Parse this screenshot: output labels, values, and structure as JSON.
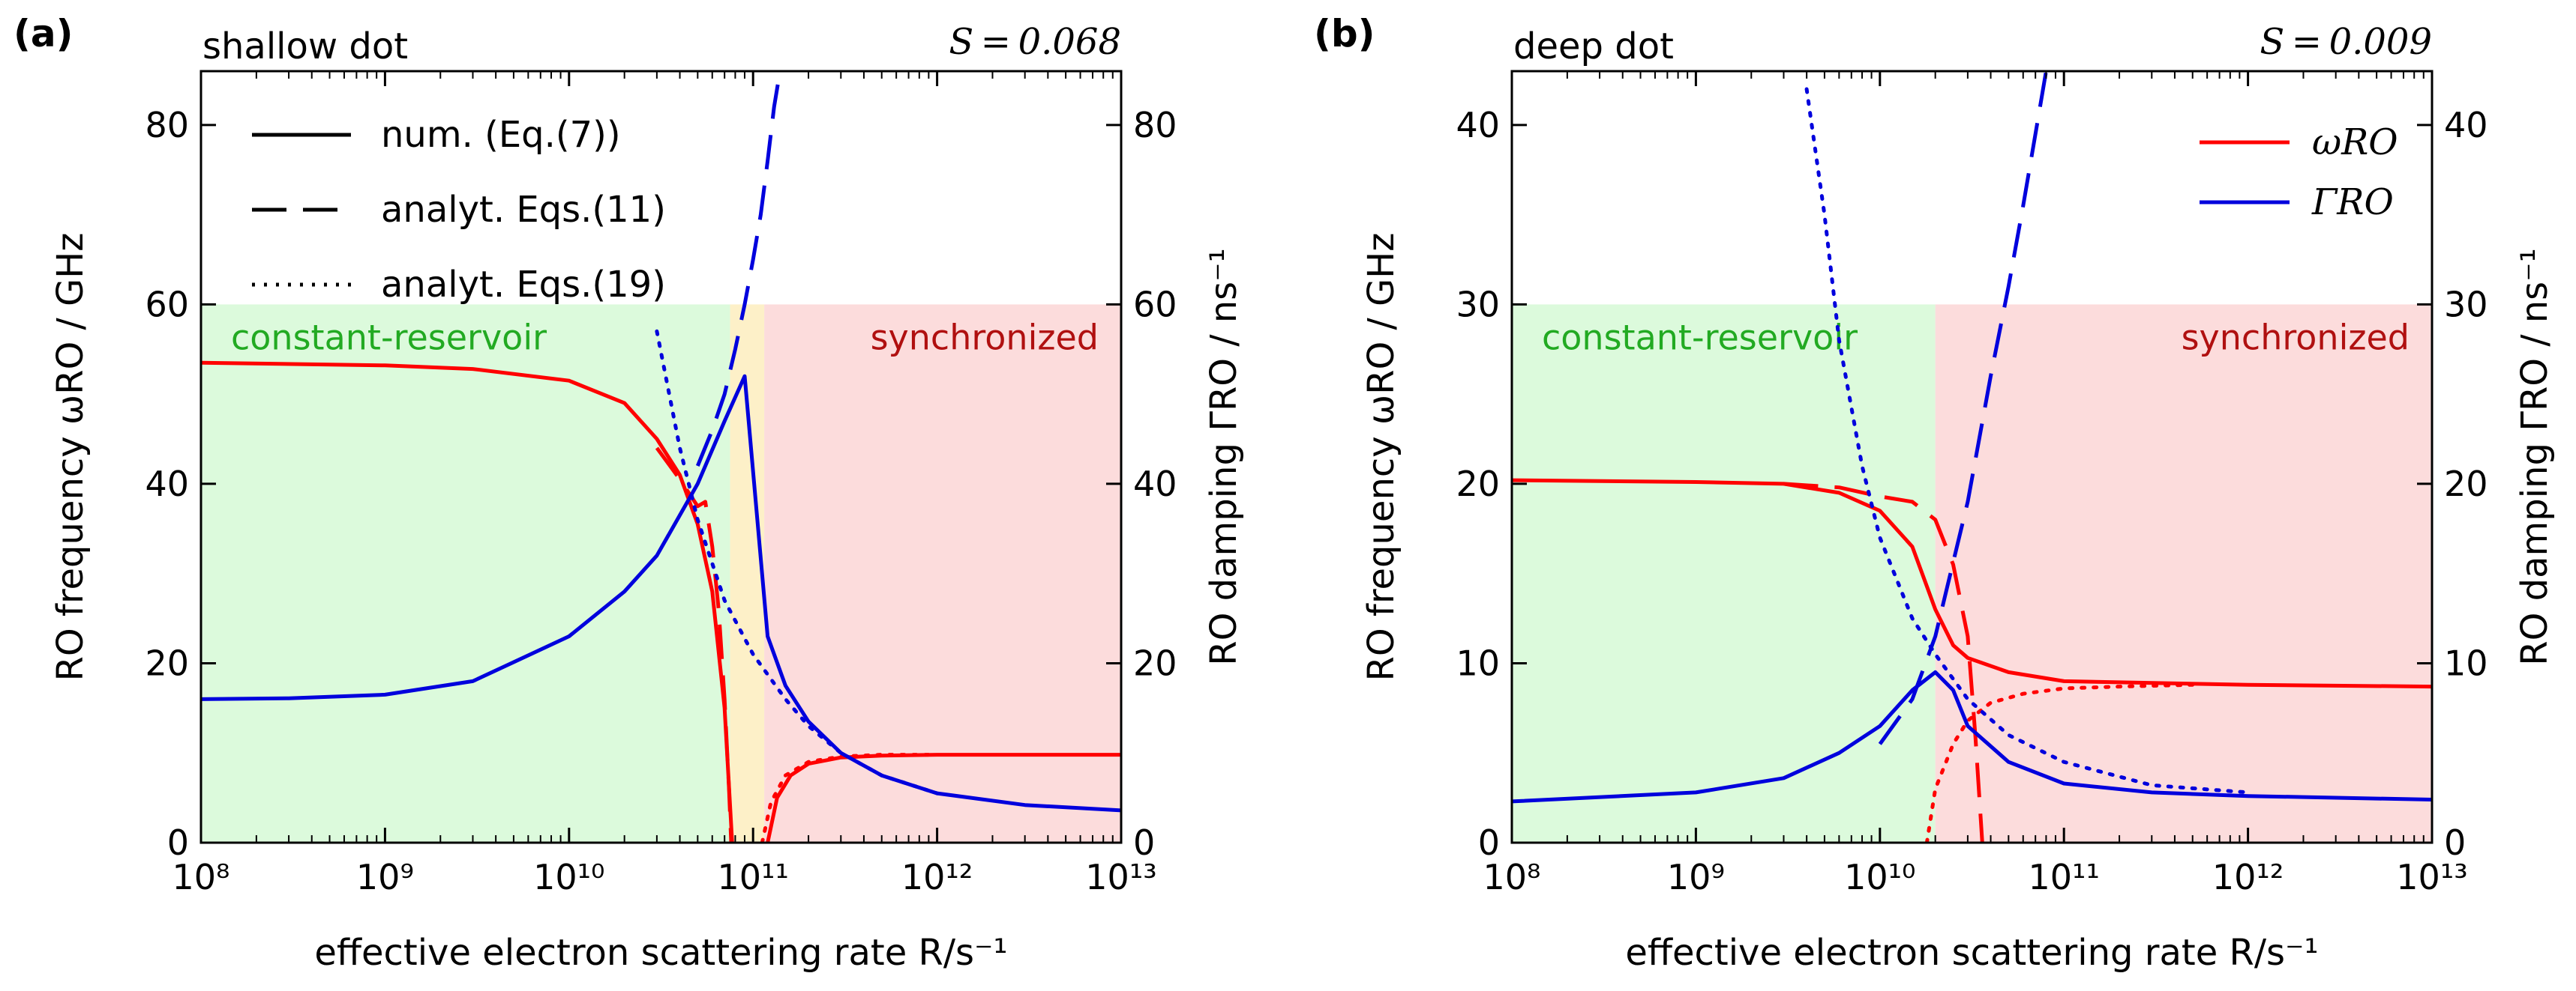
{
  "chart_data": [
    {
      "type": "line",
      "panel_label": "(a)",
      "title": "shallow dot",
      "parameter_label": "S = 0.068",
      "xlabel": "effective electron scattering rate  R/s⁻¹",
      "ylabel_left": "RO frequency  ωRO  /  GHz",
      "ylabel_right": "RO damping  ΓRO  /  ns⁻¹",
      "x_scale": "log",
      "xlim": [
        100000000.0,
        10000000000000.0
      ],
      "ylim_left": [
        0,
        86
      ],
      "ylim_right": [
        0,
        86
      ],
      "x_ticks": [
        100000000.0,
        1000000000.0,
        10000000000.0,
        100000000000.0,
        1000000000000.0,
        10000000000000.0
      ],
      "x_tick_labels": [
        "10⁸",
        "10⁹",
        "10¹⁰",
        "10¹¹",
        "10¹²",
        "10¹³"
      ],
      "y_ticks_left": [
        0,
        20,
        40,
        60,
        80
      ],
      "y_ticks_right": [
        0,
        20,
        40,
        60,
        80
      ],
      "regions": [
        {
          "label": "constant-reservoir",
          "x_range": [
            100000000.0,
            75000000000.0
          ],
          "y_range": [
            0,
            60
          ],
          "color": "#dcfadc",
          "text_color": "#22aa22"
        },
        {
          "label": "",
          "x_range": [
            75000000000.0,
            115000000000.0
          ],
          "y_range": [
            0,
            60
          ],
          "color": "#fdf0c8",
          "text_color": "#000000"
        },
        {
          "label": "synchronized",
          "x_range": [
            115000000000.0,
            10000000000000.0
          ],
          "y_range": [
            0,
            60
          ],
          "color": "#fcdcdc",
          "text_color": "#b01010"
        }
      ],
      "legend": {
        "position": "top-left",
        "entries": [
          {
            "label": "num. (Eq.(7))",
            "style": "solid"
          },
          {
            "label": "analyt. Eqs.(11)",
            "style": "dashed"
          },
          {
            "label": "analyt. Eqs.(19)",
            "style": "dotted"
          }
        ]
      },
      "series": [
        {
          "name": "ωRO num.",
          "color": "#ff0000",
          "style": "solid",
          "axis": "left",
          "x": [
            100000000.0,
            1000000000.0,
            3000000000.0,
            10000000000.0,
            20000000000.0,
            30000000000.0,
            40000000000.0,
            50000000000.0,
            60000000000.0,
            70000000000.0,
            77000000000.0
          ],
          "y": [
            53.5,
            53.2,
            52.8,
            51.5,
            49,
            45,
            41,
            35.5,
            28,
            15,
            0
          ]
        },
        {
          "name": "ωRO num. (synchronized branch)",
          "color": "#ff0000",
          "style": "solid",
          "axis": "left",
          "x": [
            120000000000.0,
            135000000000.0,
            160000000000.0,
            200000000000.0,
            300000000000.0,
            500000000000.0,
            1000000000000.0,
            10000000000000.0
          ],
          "y": [
            0,
            5,
            7.5,
            8.8,
            9.5,
            9.7,
            9.8,
            9.8
          ]
        },
        {
          "name": "ωRO analyt. Eqs.(11)",
          "color": "#ff0000",
          "style": "dashed",
          "axis": "left",
          "x": [
            30000000000.0,
            40000000000.0,
            50000000000.0,
            55000000000.0,
            60000000000.0,
            65000000000.0,
            70000000000.0,
            74000000000.0,
            76000000000.0
          ],
          "y": [
            44,
            40.5,
            37.5,
            38,
            33,
            26,
            16,
            6,
            0
          ]
        },
        {
          "name": "ωRO analyt. Eqs.(19)",
          "color": "#ff0000",
          "style": "dotted",
          "axis": "left",
          "x": [
            112000000000.0,
            125000000000.0,
            150000000000.0,
            200000000000.0,
            300000000000.0,
            500000000000.0,
            1000000000000.0
          ],
          "y": [
            0,
            4.5,
            7.5,
            9,
            9.6,
            9.8,
            9.8
          ]
        },
        {
          "name": "ΓRO num.",
          "color": "#0000dd",
          "style": "solid",
          "axis": "right",
          "x": [
            100000000.0,
            300000000.0,
            1000000000.0,
            3000000000.0,
            10000000000.0,
            20000000000.0,
            30000000000.0,
            50000000000.0,
            70000000000.0,
            90000000000.0,
            120000000000.0,
            150000000000.0,
            200000000000.0,
            300000000000.0,
            500000000000.0,
            1000000000000.0,
            3000000000000.0,
            10000000000000.0
          ],
          "y": [
            16,
            16.1,
            16.5,
            18,
            23,
            28,
            32,
            40,
            47,
            52,
            23,
            17.5,
            13.5,
            10,
            7.5,
            5.5,
            4.2,
            3.6
          ]
        },
        {
          "name": "ΓRO analyt. Eqs.(11)",
          "color": "#0000dd",
          "style": "dashed",
          "axis": "right",
          "x": [
            50000000000.0,
            60000000000.0,
            70000000000.0,
            80000000000.0,
            90000000000.0,
            100000000000.0,
            110000000000.0,
            120000000000.0,
            130000000000.0,
            140000000000.0
          ],
          "y": [
            42,
            46,
            50,
            55,
            60,
            65,
            70,
            76,
            82,
            86
          ]
        },
        {
          "name": "ΓRO analyt. Eqs.(19)",
          "color": "#0000dd",
          "style": "dotted",
          "axis": "right",
          "x": [
            30000000000.0,
            40000000000.0,
            50000000000.0,
            70000000000.0,
            100000000000.0,
            150000000000.0,
            200000000000.0,
            300000000000.0,
            500000000000.0,
            1000000000000.0
          ],
          "y": [
            57,
            44,
            36,
            27,
            21,
            16,
            13,
            10,
            7.5,
            5.5
          ]
        }
      ]
    },
    {
      "type": "line",
      "panel_label": "(b)",
      "title": "deep dot",
      "parameter_label": "S = 0.009",
      "xlabel": "effective electron scattering rate  R/s⁻¹",
      "ylabel_left": "RO frequency  ωRO  /  GHz",
      "ylabel_right": "RO damping  ΓRO  /  ns⁻¹",
      "x_scale": "log",
      "xlim": [
        100000000.0,
        10000000000000.0
      ],
      "ylim_left": [
        0,
        43
      ],
      "ylim_right": [
        0,
        43
      ],
      "x_ticks": [
        100000000.0,
        1000000000.0,
        10000000000.0,
        100000000000.0,
        1000000000000.0,
        10000000000000.0
      ],
      "x_tick_labels": [
        "10⁸",
        "10⁹",
        "10¹⁰",
        "10¹¹",
        "10¹²",
        "10¹³"
      ],
      "y_ticks_left": [
        0,
        10,
        20,
        30,
        40
      ],
      "y_ticks_right": [
        0,
        10,
        20,
        30,
        40
      ],
      "regions": [
        {
          "label": "constant-reservoir",
          "x_range": [
            100000000.0,
            20000000000.0
          ],
          "y_range": [
            0,
            30
          ],
          "color": "#dcfadc",
          "text_color": "#22aa22"
        },
        {
          "label": "synchronized",
          "x_range": [
            20000000000.0,
            10000000000000.0
          ],
          "y_range": [
            0,
            30
          ],
          "color": "#fcdcdc",
          "text_color": "#b01010"
        }
      ],
      "legend": {
        "position": "top-right",
        "entries": [
          {
            "label": "ωRO",
            "style": "solid",
            "color": "#ff0000"
          },
          {
            "label": "ΓRO",
            "style": "solid",
            "color": "#0000dd"
          }
        ]
      },
      "series": [
        {
          "name": "ωRO num.",
          "color": "#ff0000",
          "style": "solid",
          "axis": "left",
          "x": [
            100000000.0,
            1000000000.0,
            3000000000.0,
            6000000000.0,
            10000000000.0,
            15000000000.0,
            20000000000.0,
            25000000000.0,
            30000000000.0,
            50000000000.0,
            100000000000.0,
            1000000000000.0,
            10000000000000.0
          ],
          "y": [
            20.2,
            20.1,
            20.0,
            19.5,
            18.5,
            16.5,
            13,
            11,
            10.3,
            9.5,
            9.0,
            8.8,
            8.7
          ]
        },
        {
          "name": "ωRO analyt. Eqs.(11)",
          "color": "#ff0000",
          "style": "dashed",
          "axis": "left",
          "x": [
            3000000000.0,
            6000000000.0,
            10000000000.0,
            15000000000.0,
            20000000000.0,
            25000000000.0,
            30000000000.0,
            33000000000.0,
            36000000000.0
          ],
          "y": [
            20.0,
            19.8,
            19.3,
            19.0,
            18.0,
            15.5,
            11.5,
            6,
            0
          ]
        },
        {
          "name": "ωRO analyt. Eqs.(19)",
          "color": "#ff0000",
          "style": "dotted",
          "axis": "left",
          "x": [
            18000000000.0,
            20000000000.0,
            25000000000.0,
            30000000000.0,
            40000000000.0,
            60000000000.0,
            100000000000.0,
            200000000000.0,
            500000000000.0
          ],
          "y": [
            0,
            3,
            5.5,
            6.8,
            7.8,
            8.3,
            8.6,
            8.7,
            8.8
          ]
        },
        {
          "name": "ΓRO num.",
          "color": "#0000dd",
          "style": "solid",
          "axis": "right",
          "x": [
            100000000.0,
            1000000000.0,
            3000000000.0,
            6000000000.0,
            10000000000.0,
            15000000000.0,
            20000000000.0,
            25000000000.0,
            30000000000.0,
            50000000000.0,
            100000000000.0,
            300000000000.0,
            1000000000000.0,
            10000000000000.0
          ],
          "y": [
            2.3,
            2.8,
            3.6,
            5,
            6.5,
            8.5,
            9.5,
            8.5,
            6.5,
            4.5,
            3.3,
            2.8,
            2.6,
            2.4
          ]
        },
        {
          "name": "ΓRO analyt. Eqs.(11)",
          "color": "#0000dd",
          "style": "dashed",
          "axis": "right",
          "x": [
            10000000000.0,
            15000000000.0,
            20000000000.0,
            30000000000.0,
            40000000000.0,
            50000000000.0,
            60000000000.0,
            70000000000.0,
            80000000000.0
          ],
          "y": [
            5.5,
            8,
            11.5,
            19,
            26,
            31,
            35.5,
            39.5,
            43
          ]
        },
        {
          "name": "ΓRO analyt. Eqs.(19)",
          "color": "#0000dd",
          "style": "dotted",
          "axis": "right",
          "x": [
            4000000000.0,
            5000000000.0,
            6000000000.0,
            8000000000.0,
            10000000000.0,
            15000000000.0,
            20000000000.0,
            30000000000.0,
            50000000000.0,
            100000000000.0,
            300000000000.0,
            1000000000000.0
          ],
          "y": [
            42,
            35,
            28,
            21,
            17,
            12.5,
            10.5,
            8,
            6,
            4.5,
            3.2,
            2.8
          ]
        }
      ]
    }
  ]
}
